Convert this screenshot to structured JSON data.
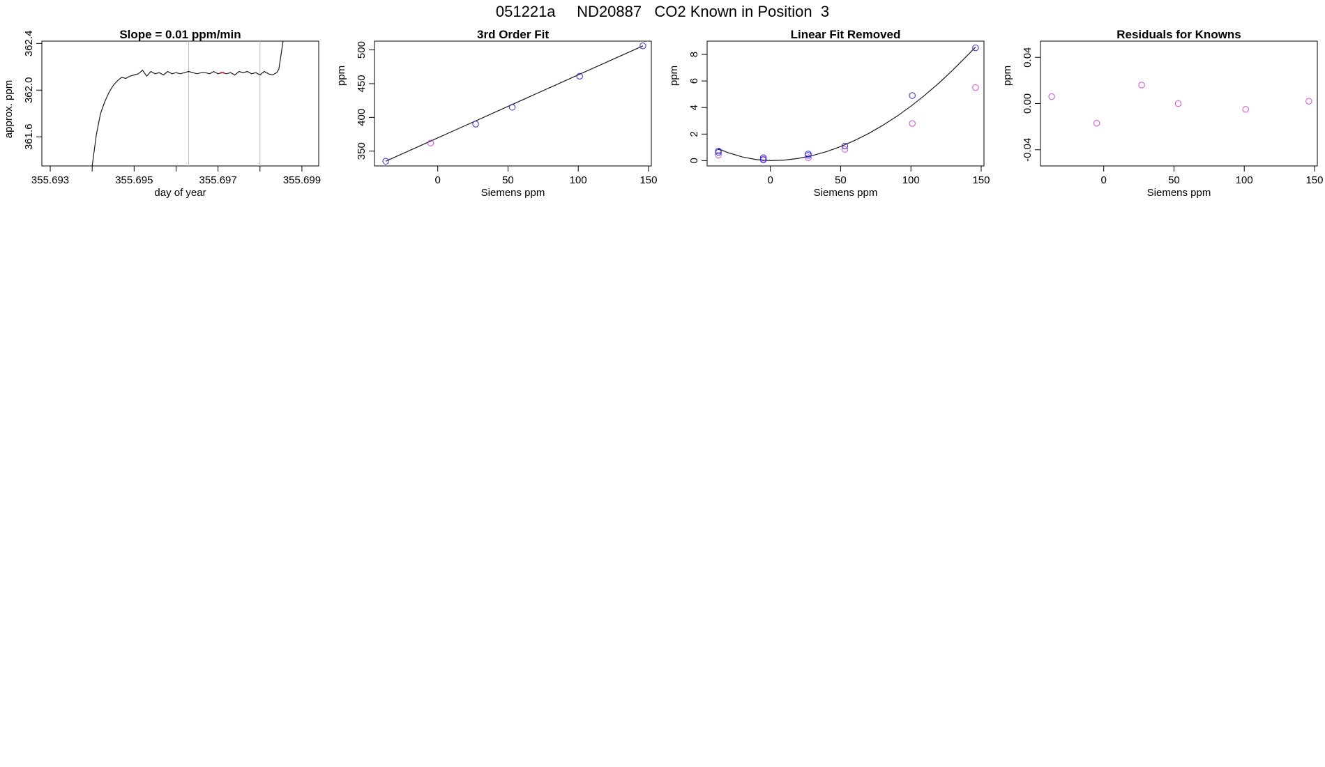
{
  "page": {
    "title": "051221a     ND20887   CO2 Known in Position  3"
  },
  "colors": {
    "axis": "#000000",
    "line": "#1a1a1a",
    "guide": "#bdbdbd",
    "blue_point": "#2b2bd6",
    "magenta_point": "#d24ce0",
    "red_mark": "#e03030"
  },
  "chart_data": [
    {
      "id": "slope",
      "type": "line",
      "title": "Slope =  0.01  ppm/min",
      "xlabel": "day of year",
      "ylabel": "approx. ppm",
      "xlim": [
        355.6928,
        355.6994
      ],
      "ylim": [
        361.35,
        362.42
      ],
      "xticks": [
        355.693,
        355.694,
        355.695,
        355.696,
        355.697,
        355.698,
        355.699
      ],
      "xtick_labels": [
        "355.693",
        "",
        "355.695",
        "",
        "355.697",
        "",
        "355.699"
      ],
      "yticks": [
        361.6,
        362.0,
        362.4
      ],
      "ytick_labels": [
        "361.6",
        "362.0",
        "362.4"
      ],
      "vlines": [
        355.6963,
        355.698
      ],
      "series": [
        {
          "x": [
            355.694,
            355.6941,
            355.6942,
            355.6943,
            355.6944,
            355.6945,
            355.6946,
            355.6947,
            355.6948,
            355.6949,
            355.695,
            355.6951,
            355.6952,
            355.6953,
            355.6954,
            355.6955,
            355.6956,
            355.6957,
            355.6958,
            355.6959,
            355.696,
            355.6961,
            355.6962,
            355.6963,
            355.6964,
            355.6965,
            355.6966,
            355.6967,
            355.6968,
            355.6969,
            355.697,
            355.6971,
            355.6972,
            355.6973,
            355.6974,
            355.6975,
            355.6976,
            355.6977,
            355.6978,
            355.6979,
            355.698,
            355.6981,
            355.6982,
            355.6983,
            355.6984,
            355.69845,
            355.6985,
            355.69855
          ],
          "y": [
            361.35,
            361.62,
            361.8,
            361.9,
            361.98,
            362.04,
            362.08,
            362.11,
            362.1,
            362.12,
            362.13,
            362.14,
            362.17,
            362.12,
            362.16,
            362.14,
            362.15,
            362.13,
            362.16,
            362.14,
            362.15,
            362.14,
            362.15,
            362.16,
            362.15,
            362.14,
            362.15,
            362.15,
            362.14,
            362.16,
            362.14,
            362.15,
            362.14,
            362.15,
            362.13,
            362.16,
            362.15,
            362.16,
            362.14,
            362.15,
            362.13,
            362.16,
            362.14,
            362.13,
            362.15,
            362.18,
            362.3,
            362.42
          ]
        }
      ],
      "marker": {
        "x": 355.6971,
        "y": 362.15
      }
    },
    {
      "id": "third-order",
      "type": "scatter",
      "title": "3rd Order Fit",
      "xlabel": "Siemens ppm",
      "ylabel": "ppm",
      "xlim": [
        -45,
        152
      ],
      "ylim": [
        328,
        513
      ],
      "xticks": [
        0,
        50,
        100,
        150
      ],
      "xtick_labels": [
        "0",
        "50",
        "100",
        "150"
      ],
      "yticks": [
        350,
        400,
        450,
        500
      ],
      "ytick_labels": [
        "350",
        "400",
        "450",
        "500"
      ],
      "blue_points": {
        "x": [
          -37,
          27,
          53,
          101,
          146
        ],
        "y": [
          335,
          390,
          415,
          461,
          506
        ]
      },
      "magenta_points": {
        "x": [
          -5
        ],
        "y": [
          362
        ]
      },
      "fit_line": {
        "x": [
          -37,
          146
        ],
        "y": [
          335,
          506
        ]
      }
    },
    {
      "id": "linear-removed",
      "type": "scatter",
      "title": "Linear Fit Removed",
      "xlabel": "Siemens ppm",
      "ylabel": "ppm",
      "xlim": [
        -45,
        152
      ],
      "ylim": [
        -0.4,
        9.0
      ],
      "xticks": [
        0,
        50,
        100,
        150
      ],
      "xtick_labels": [
        "0",
        "50",
        "100",
        "150"
      ],
      "yticks": [
        0,
        2,
        4,
        6,
        8
      ],
      "ytick_labels": [
        "0",
        "2",
        "4",
        "6",
        "8"
      ],
      "blue_points": {
        "x": [
          -37,
          -5,
          27,
          53,
          101,
          146
        ],
        "y": [
          0.72,
          0.22,
          0.5,
          1.1,
          4.9,
          8.5
        ]
      },
      "blue_points_2": {
        "x": [
          -37,
          -5,
          27
        ],
        "y": [
          0.62,
          0.06,
          0.4
        ]
      },
      "magenta_points": {
        "x": [
          -37,
          -5,
          27,
          53,
          101,
          146
        ],
        "y": [
          0.42,
          0.12,
          0.22,
          0.85,
          2.8,
          5.5
        ]
      },
      "curve": {
        "x": [
          -37,
          -30,
          -20,
          -10,
          0,
          10,
          20,
          30,
          40,
          50,
          60,
          70,
          80,
          90,
          100,
          110,
          120,
          130,
          140,
          146
        ],
        "y": [
          0.9,
          0.6,
          0.28,
          0.08,
          0.0,
          0.04,
          0.17,
          0.38,
          0.68,
          1.06,
          1.52,
          2.05,
          2.66,
          3.34,
          4.1,
          4.94,
          5.85,
          6.84,
          7.9,
          8.55
        ]
      }
    },
    {
      "id": "residuals",
      "type": "scatter",
      "title": "Residuals for Knowns",
      "xlabel": "Siemens ppm",
      "ylabel": "ppm",
      "xlim": [
        -45,
        152
      ],
      "ylim": [
        -0.054,
        0.054
      ],
      "xticks": [
        0,
        50,
        100,
        150
      ],
      "xtick_labels": [
        "0",
        "50",
        "100",
        "150"
      ],
      "yticks": [
        -0.04,
        0.0,
        0.04
      ],
      "ytick_labels": [
        "-0.04",
        "0.00",
        "0.04"
      ],
      "magenta_points": {
        "x": [
          -37,
          -5,
          27,
          53,
          101,
          146
        ],
        "y": [
          0.006,
          -0.017,
          0.016,
          0.0,
          -0.005,
          0.002
        ]
      }
    }
  ]
}
